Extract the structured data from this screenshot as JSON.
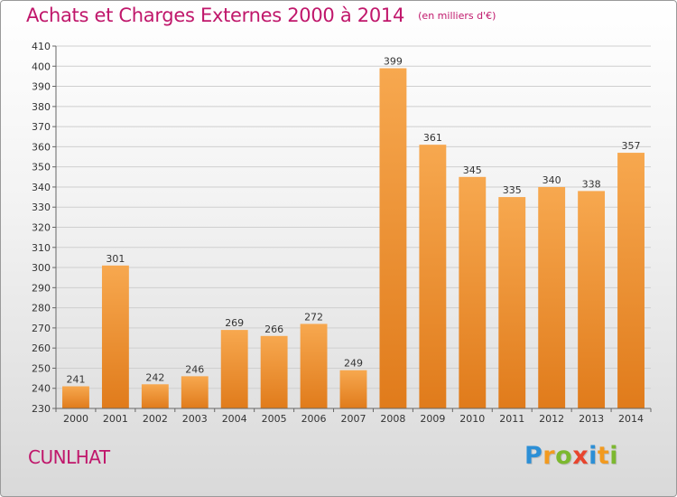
{
  "title": "Achats et Charges Externes 2000 à 2014",
  "subtitle": "(en milliers d'€)",
  "city": "CUNLHAT",
  "logo": {
    "text": "Proxiti",
    "letters": [
      {
        "ch": "P",
        "color": "#2c8fd6"
      },
      {
        "ch": "r",
        "color": "#f29a1f"
      },
      {
        "ch": "o",
        "color": "#7cb82f"
      },
      {
        "ch": "x",
        "color": "#e8442d"
      },
      {
        "ch": "i",
        "color": "#2c8fd6"
      },
      {
        "ch": "t",
        "color": "#f29a1f"
      },
      {
        "ch": "i",
        "color": "#7cb82f"
      }
    ]
  },
  "colors": {
    "bar_light": "#f7a84f",
    "bar_dark": "#e07b1b",
    "title": "#c0176b"
  },
  "chart_data": {
    "type": "bar",
    "title": "Achats et Charges Externes 2000 à 2014",
    "subtitle": "(en milliers d'€)",
    "categories": [
      "2000",
      "2001",
      "2002",
      "2003",
      "2004",
      "2005",
      "2006",
      "2007",
      "2008",
      "2009",
      "2010",
      "2011",
      "2012",
      "2013",
      "2014"
    ],
    "values": [
      241,
      301,
      242,
      246,
      269,
      266,
      272,
      249,
      399,
      361,
      345,
      335,
      340,
      338,
      357
    ],
    "ylim": [
      230,
      410
    ],
    "yticks": [
      230,
      240,
      250,
      260,
      270,
      280,
      290,
      300,
      310,
      320,
      330,
      340,
      350,
      360,
      370,
      380,
      390,
      400,
      410
    ],
    "grid": true,
    "data_labels": true
  }
}
